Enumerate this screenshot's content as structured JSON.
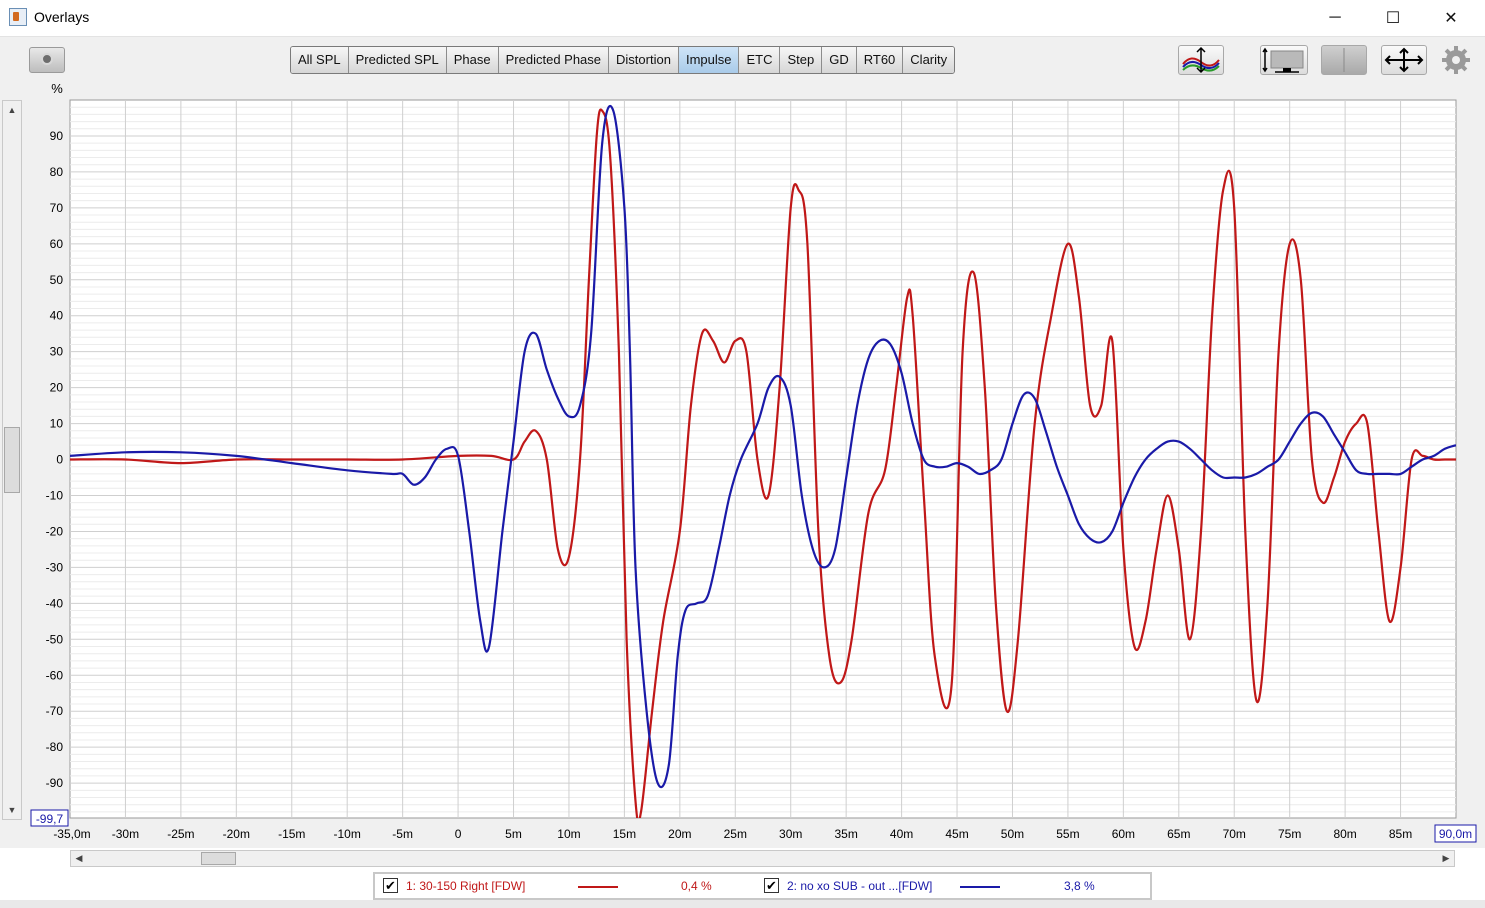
{
  "window": {
    "title": "Overlays",
    "controls": [
      "─",
      "☐",
      "✕"
    ]
  },
  "toolbar": {
    "tabs": [
      "All SPL",
      "Predicted SPL",
      "Phase",
      "Predicted Phase",
      "Distortion",
      "Impulse",
      "ETC",
      "Step",
      "GD",
      "RT60",
      "Clarity"
    ],
    "active_tab": "Impulse",
    "icons": [
      "camera-icon",
      "trace-arrange-icon",
      "limits-icon",
      "controls-icon",
      "pan-icon",
      "gear-icon"
    ]
  },
  "chart_data": {
    "type": "line",
    "ylabel": "%",
    "ylim": [
      -99.7,
      100
    ],
    "xlim": [
      -35,
      90
    ],
    "y_ticks": [
      90,
      80,
      70,
      60,
      50,
      40,
      30,
      20,
      10,
      0,
      -10,
      -20,
      -30,
      -40,
      -50,
      -60,
      -70,
      -80,
      -90
    ],
    "y_tick_labels": [
      "90",
      "80",
      "70",
      "60",
      "50",
      "40",
      "30",
      "20",
      "10",
      "0",
      "-10",
      "-20",
      "-30",
      "-40",
      "-50",
      "-60",
      "-70",
      "-80",
      "-90"
    ],
    "y_min_label": "-99,7",
    "x_ticks": [
      -30,
      -25,
      -20,
      -15,
      -10,
      -5,
      0,
      5,
      10,
      15,
      20,
      25,
      30,
      35,
      40,
      45,
      50,
      55,
      60,
      65,
      70,
      75,
      80,
      85
    ],
    "x_tick_labels": [
      "-30m",
      "-25m",
      "-20m",
      "-15m",
      "-10m",
      "-5m",
      "0",
      "5m",
      "10m",
      "15m",
      "20m",
      "25m",
      "30m",
      "35m",
      "40m",
      "45m",
      "50m",
      "55m",
      "60m",
      "65m",
      "70m",
      "75m",
      "80m",
      "85m"
    ],
    "x_min_label": "-35,0m",
    "x_max_label": "90,0m",
    "grid": true,
    "series": [
      {
        "name": "1: 30-150 Right [FDW]",
        "color": "#c01818",
        "points": [
          [
            -35,
            0
          ],
          [
            -30,
            0
          ],
          [
            -25,
            -1
          ],
          [
            -20,
            0
          ],
          [
            -15,
            0
          ],
          [
            -10,
            0
          ],
          [
            -5,
            0
          ],
          [
            0,
            1
          ],
          [
            3,
            1
          ],
          [
            5,
            0
          ],
          [
            6,
            5
          ],
          [
            7,
            8
          ],
          [
            8,
            0
          ],
          [
            9,
            -25
          ],
          [
            10,
            -27
          ],
          [
            11,
            0
          ],
          [
            11.8,
            50
          ],
          [
            12.5,
            90
          ],
          [
            13,
            97
          ],
          [
            13.7,
            85
          ],
          [
            14.5,
            30
          ],
          [
            15.2,
            -50
          ],
          [
            16,
            -95
          ],
          [
            16.5,
            -98
          ],
          [
            17.5,
            -70
          ],
          [
            18.5,
            -45
          ],
          [
            20,
            -20
          ],
          [
            21,
            15
          ],
          [
            22,
            35
          ],
          [
            23,
            33
          ],
          [
            24,
            27
          ],
          [
            25,
            33
          ],
          [
            26,
            30
          ],
          [
            27,
            0
          ],
          [
            28,
            -10
          ],
          [
            29,
            20
          ],
          [
            30,
            70
          ],
          [
            30.7,
            75
          ],
          [
            31.5,
            60
          ],
          [
            32.5,
            -20
          ],
          [
            33.5,
            -55
          ],
          [
            34.5,
            -62
          ],
          [
            35.5,
            -50
          ],
          [
            37,
            -15
          ],
          [
            38.5,
            -3
          ],
          [
            39.5,
            20
          ],
          [
            40.5,
            45
          ],
          [
            41,
            40
          ],
          [
            42,
            -10
          ],
          [
            43,
            -55
          ],
          [
            44.5,
            -63
          ],
          [
            45.5,
            30
          ],
          [
            46.5,
            52
          ],
          [
            47.5,
            20
          ],
          [
            48.5,
            -40
          ],
          [
            49.5,
            -70
          ],
          [
            50.5,
            -50
          ],
          [
            52,
            10
          ],
          [
            53.5,
            40
          ],
          [
            55,
            60
          ],
          [
            56,
            45
          ],
          [
            57,
            15
          ],
          [
            58,
            15
          ],
          [
            59,
            33
          ],
          [
            60,
            -25
          ],
          [
            61,
            -52
          ],
          [
            62,
            -45
          ],
          [
            63,
            -25
          ],
          [
            64,
            -10
          ],
          [
            65,
            -25
          ],
          [
            66,
            -50
          ],
          [
            67,
            -20
          ],
          [
            68,
            40
          ],
          [
            69,
            75
          ],
          [
            70,
            70
          ],
          [
            71,
            -20
          ],
          [
            72,
            -67
          ],
          [
            73,
            -40
          ],
          [
            74,
            30
          ],
          [
            75,
            60
          ],
          [
            76,
            50
          ],
          [
            77,
            0
          ],
          [
            78,
            -12
          ],
          [
            79,
            -5
          ],
          [
            80,
            5
          ],
          [
            81,
            10
          ],
          [
            82,
            10
          ],
          [
            83,
            -20
          ],
          [
            84,
            -45
          ],
          [
            85,
            -30
          ],
          [
            86,
            0
          ],
          [
            87,
            1
          ],
          [
            88,
            0
          ],
          [
            89,
            0
          ],
          [
            90,
            0
          ]
        ]
      },
      {
        "name": "2: no xo SUB - out ...[FDW]",
        "color": "#1a1aa8",
        "points": [
          [
            -35,
            1
          ],
          [
            -30,
            2
          ],
          [
            -25,
            2
          ],
          [
            -20,
            1
          ],
          [
            -15,
            -1
          ],
          [
            -10,
            -3
          ],
          [
            -6,
            -4
          ],
          [
            -5,
            -4
          ],
          [
            -4,
            -7
          ],
          [
            -3,
            -5
          ],
          [
            -2,
            0
          ],
          [
            -1,
            3
          ],
          [
            0,
            1
          ],
          [
            1,
            -20
          ],
          [
            2,
            -45
          ],
          [
            2.8,
            -52
          ],
          [
            4,
            -20
          ],
          [
            5,
            5
          ],
          [
            6,
            30
          ],
          [
            7,
            35
          ],
          [
            8,
            25
          ],
          [
            9,
            17
          ],
          [
            10,
            12
          ],
          [
            11,
            15
          ],
          [
            12,
            35
          ],
          [
            13,
            88
          ],
          [
            14,
            97
          ],
          [
            15,
            70
          ],
          [
            15.5,
            30
          ],
          [
            16,
            -30
          ],
          [
            17,
            -70
          ],
          [
            18,
            -90
          ],
          [
            19,
            -85
          ],
          [
            19.8,
            -55
          ],
          [
            20.5,
            -42
          ],
          [
            21.5,
            -40
          ],
          [
            22.5,
            -38
          ],
          [
            23.5,
            -25
          ],
          [
            24.5,
            -10
          ],
          [
            25.5,
            0
          ],
          [
            27,
            10
          ],
          [
            28,
            20
          ],
          [
            29,
            23
          ],
          [
            30,
            15
          ],
          [
            31,
            -10
          ],
          [
            32,
            -25
          ],
          [
            33,
            -30
          ],
          [
            34,
            -25
          ],
          [
            35,
            -5
          ],
          [
            36,
            15
          ],
          [
            37,
            28
          ],
          [
            38,
            33
          ],
          [
            39,
            32
          ],
          [
            40,
            24
          ],
          [
            41,
            10
          ],
          [
            42,
            0
          ],
          [
            43,
            -2
          ],
          [
            44,
            -2
          ],
          [
            45,
            -1
          ],
          [
            46,
            -2
          ],
          [
            47,
            -4
          ],
          [
            48,
            -3
          ],
          [
            49,
            0
          ],
          [
            50,
            10
          ],
          [
            51,
            18
          ],
          [
            52,
            17
          ],
          [
            53,
            8
          ],
          [
            54,
            -2
          ],
          [
            55,
            -10
          ],
          [
            56,
            -18
          ],
          [
            57,
            -22
          ],
          [
            58,
            -23
          ],
          [
            59,
            -20
          ],
          [
            60,
            -12
          ],
          [
            61,
            -5
          ],
          [
            62,
            0
          ],
          [
            63,
            3
          ],
          [
            64,
            5
          ],
          [
            65,
            5
          ],
          [
            66,
            3
          ],
          [
            67,
            0
          ],
          [
            68,
            -3
          ],
          [
            69,
            -5
          ],
          [
            70,
            -5
          ],
          [
            71,
            -5
          ],
          [
            72,
            -4
          ],
          [
            73,
            -2
          ],
          [
            74,
            0
          ],
          [
            75,
            5
          ],
          [
            76,
            10
          ],
          [
            77,
            13
          ],
          [
            78,
            12
          ],
          [
            79,
            7
          ],
          [
            80,
            2
          ],
          [
            81,
            -3
          ],
          [
            82,
            -4
          ],
          [
            83,
            -4
          ],
          [
            84,
            -4
          ],
          [
            85,
            -4
          ],
          [
            86,
            -2
          ],
          [
            87,
            0
          ],
          [
            88,
            1
          ],
          [
            89,
            3
          ],
          [
            90,
            4
          ]
        ]
      }
    ]
  },
  "legend": [
    {
      "checked": true,
      "check_glyph": "✔",
      "name": "1: 30-150 Right [FDW]",
      "value": "0,4 %",
      "color": "#c01818"
    },
    {
      "checked": true,
      "check_glyph": "✔",
      "name": "2: no xo SUB - out ...[FDW]",
      "value": "3,8 %",
      "color": "#1a1aa8"
    }
  ]
}
